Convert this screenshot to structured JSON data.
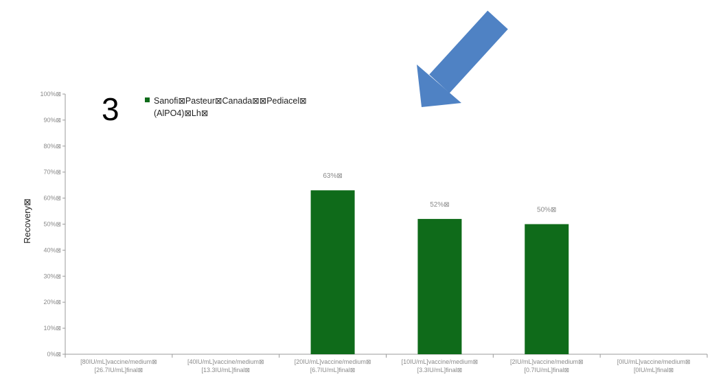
{
  "panel_label": "3",
  "colors": {
    "bar": "#0f6b1a",
    "arrow": "#4f82c4",
    "axis": "#9a9a9a",
    "text_muted": "#8a8a8a"
  },
  "chart_data": {
    "type": "bar",
    "ylabel": "Recovery⊠",
    "ylim": [
      0,
      100
    ],
    "yticks": [
      0,
      10,
      20,
      30,
      40,
      50,
      60,
      70,
      80,
      90,
      100
    ],
    "ytick_suffix": "%⊠",
    "grid": false,
    "legend_position": "top-left",
    "categories": [
      [
        "[80IU/mL]vaccine/medium⊠",
        "[26.7IU/mL]final⊠"
      ],
      [
        "[40IU/mL]vaccine/medium⊠",
        "[13.3IU/mL]final⊠"
      ],
      [
        "[20IU/mL]vaccine/medium⊠",
        "[6.7IU/mL]final⊠"
      ],
      [
        "[10IU/mL]vaccine/medium⊠",
        "[3.3IU/mL]final⊠"
      ],
      [
        "[2IU/mL]vaccine/medium⊠",
        "[0.7IU/mL]final⊠"
      ],
      [
        "[0IU/mL]vaccine/medium⊠",
        "[0IU/mL]final⊠"
      ]
    ],
    "series": [
      {
        "name_lines": [
          "Sanofi⊠Pasteur⊠Canada⊠⊠Pediacel⊠",
          "(AlPO4)⊠Lh⊠"
        ],
        "values": [
          null,
          null,
          63,
          52,
          50,
          null
        ],
        "data_labels": [
          "",
          "",
          "63%⊠",
          "52%⊠",
          "50%⊠",
          ""
        ]
      }
    ]
  }
}
